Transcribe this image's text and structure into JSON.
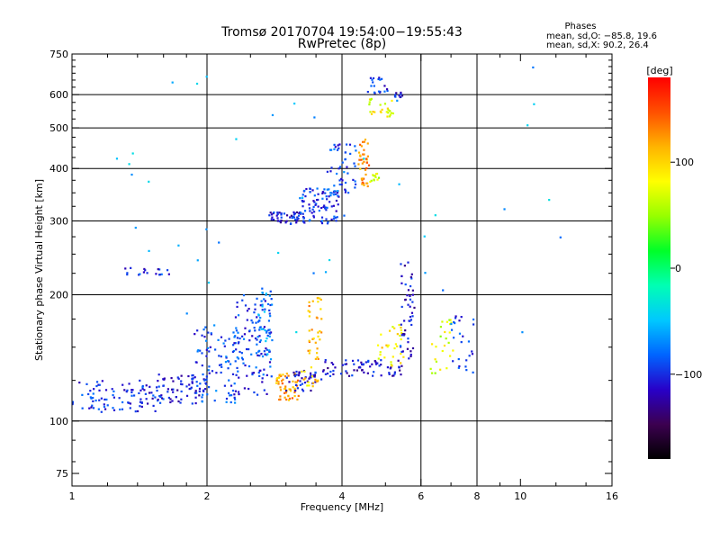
{
  "chart_data": {
    "type": "scatter",
    "title": "Tromsø 20170704 19:54:00−19:55:43",
    "subtitle": "RwPretec (8p)",
    "info": {
      "heading": "Phases",
      "line1": "mean, sd,O: −85.8, 19.6",
      "line2": "mean, sd,X:  90.2, 26.4"
    },
    "xlabel": "Frequency [MHz]",
    "ylabel": "Stationary phase Virtual Height [km]",
    "xscale": "log",
    "yscale": "log",
    "xlim": [
      1,
      16
    ],
    "ylim": [
      70,
      750
    ],
    "xticks": [
      1,
      2,
      4,
      6,
      8,
      10,
      16
    ],
    "xtick_labels": [
      "1",
      "2",
      "4",
      "6",
      "8",
      "10",
      "16"
    ],
    "x_gridlines": [
      2,
      4,
      6,
      8
    ],
    "yticks": [
      75,
      100,
      200,
      300,
      400,
      500,
      600,
      750
    ],
    "ytick_labels": [
      "75",
      "100",
      "200",
      "300",
      "400",
      "500",
      "600",
      "750"
    ],
    "y_gridlines": [
      100,
      200,
      300,
      400,
      500,
      600
    ],
    "grid": true,
    "colorbar": {
      "label": "[deg]",
      "range": [
        -180,
        180
      ],
      "ticks": [
        100,
        0,
        -100
      ],
      "tick_labels": [
        "100",
        "0",
        "−100"
      ],
      "colors": [
        "#000000",
        "#3c0050",
        "#2800c8",
        "#0064ff",
        "#00c8ff",
        "#00ffb4",
        "#00ff28",
        "#96ff00",
        "#ffff00",
        "#ffb400",
        "#ff5000",
        "#ff0000"
      ]
    },
    "clusters": [
      {
        "f": [
          1.0,
          1.55
        ],
        "h": [
          105,
          125
        ],
        "phase": -100,
        "n": 90
      },
      {
        "f": [
          1.55,
          2.0
        ],
        "h": [
          110,
          130
        ],
        "phase": -105,
        "n": 70
      },
      {
        "f": [
          1.85,
          2.35
        ],
        "h": [
          110,
          170
        ],
        "phase": -90,
        "n": 90
      },
      {
        "f": [
          2.3,
          2.8
        ],
        "h": [
          115,
          200
        ],
        "phase": -95,
        "n": 110
      },
      {
        "f": [
          2.6,
          2.8
        ],
        "h": [
          140,
          210
        ],
        "phase": -70,
        "n": 40
      },
      {
        "f": [
          2.85,
          3.2
        ],
        "h": [
          112,
          130
        ],
        "phase": 120,
        "n": 55
      },
      {
        "f": [
          3.0,
          3.6
        ],
        "h": [
          118,
          132
        ],
        "phase": -110,
        "n": 40
      },
      {
        "f": [
          3.25,
          3.55
        ],
        "h": [
          120,
          135
        ],
        "phase": 100,
        "n": 15
      },
      {
        "f": [
          3.35,
          3.6
        ],
        "h": [
          140,
          200
        ],
        "phase": 115,
        "n": 35
      },
      {
        "f": [
          3.6,
          5.5
        ],
        "h": [
          128,
          140
        ],
        "phase": -110,
        "n": 70
      },
      {
        "f": [
          4.8,
          5.5
        ],
        "h": [
          135,
          170
        ],
        "phase": 90,
        "n": 30
      },
      {
        "f": [
          5.4,
          5.8
        ],
        "h": [
          140,
          240
        ],
        "phase": -110,
        "n": 50
      },
      {
        "f": [
          6.3,
          7.2
        ],
        "h": [
          130,
          175
        ],
        "phase": 70,
        "n": 25
      },
      {
        "f": [
          7.0,
          7.9
        ],
        "h": [
          130,
          180
        ],
        "phase": -100,
        "n": 25
      },
      {
        "f": [
          1.3,
          1.65
        ],
        "h": [
          223,
          232
        ],
        "phase": -100,
        "n": 18
      },
      {
        "f": [
          2.75,
          3.3
        ],
        "h": [
          295,
          315
        ],
        "phase": -110,
        "n": 55
      },
      {
        "f": [
          3.2,
          3.95
        ],
        "h": [
          295,
          360
        ],
        "phase": -95,
        "n": 90
      },
      {
        "f": [
          3.7,
          4.3
        ],
        "h": [
          350,
          460
        ],
        "phase": -90,
        "n": 45
      },
      {
        "f": [
          4.35,
          4.6
        ],
        "h": [
          360,
          470
        ],
        "phase": 125,
        "n": 40
      },
      {
        "f": [
          4.6,
          4.85
        ],
        "h": [
          370,
          390
        ],
        "phase": 70,
        "n": 12
      },
      {
        "f": [
          4.6,
          5.2
        ],
        "h": [
          530,
          590
        ],
        "phase": 80,
        "n": 25
      },
      {
        "f": [
          4.55,
          5.1
        ],
        "h": [
          600,
          660
        ],
        "phase": -100,
        "n": 20
      },
      {
        "f": [
          5.2,
          5.55
        ],
        "h": [
          590,
          610
        ],
        "phase": -110,
        "n": 10
      },
      {
        "f": [
          1.25,
          14.0
        ],
        "h": [
          150,
          700
        ],
        "phase": -60,
        "n": 45
      }
    ]
  }
}
